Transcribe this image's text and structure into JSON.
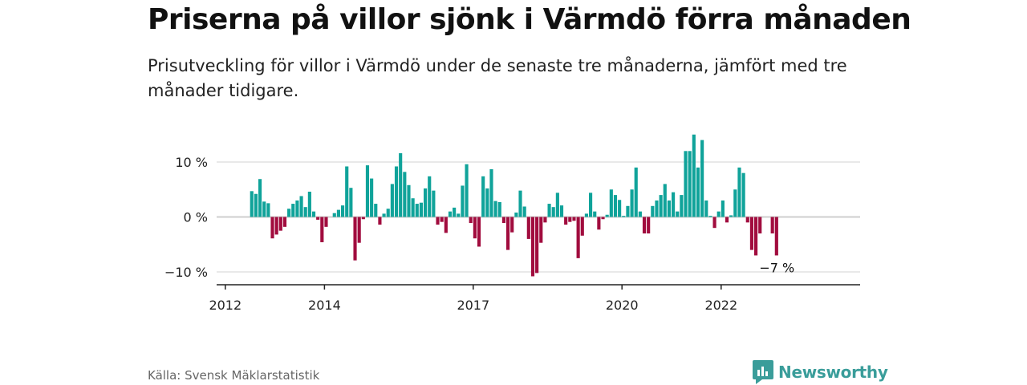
{
  "header": {
    "title": "Priserna på villor sjönk i Värmdö förra månaden",
    "subtitle": "Prisutveckling för villor i Värmdö under de senaste tre månaderna, jämfört med tre månader tidigare."
  },
  "footer": {
    "source": "Källa: Svensk Mäklarstatistik",
    "brand": "Newsworthy"
  },
  "colors": {
    "positive": "#10a39a",
    "negative": "#a10c3e",
    "brand": "#3a9d9a"
  },
  "chart_data": {
    "type": "bar",
    "x_start": "2012-01",
    "y_ticks": [
      {
        "value": 10,
        "label": "10 %"
      },
      {
        "value": 0,
        "label": "0 %"
      },
      {
        "value": -10,
        "label": "−10 %"
      }
    ],
    "x_ticks": [
      {
        "label": "2012",
        "year": 2012
      },
      {
        "label": "2014",
        "year": 2014
      },
      {
        "label": "2017",
        "year": 2017
      },
      {
        "label": "2020",
        "year": 2020
      },
      {
        "label": "2022",
        "year": 2022
      }
    ],
    "ylim": [
      -11,
      15
    ],
    "annotation": {
      "label": "−7 %"
    },
    "values": [
      null,
      null,
      null,
      null,
      null,
      null,
      4.7,
      4.2,
      6.9,
      2.8,
      2.5,
      -3.9,
      -3.2,
      -2.5,
      -1.8,
      1.5,
      2.4,
      3.0,
      3.8,
      1.8,
      4.6,
      1.0,
      -0.5,
      -4.6,
      -1.8,
      null,
      0.7,
      1.3,
      2.1,
      9.2,
      5.3,
      -7.9,
      -4.7,
      -0.4,
      9.4,
      7.0,
      2.4,
      -1.4,
      0.6,
      1.5,
      6.0,
      9.2,
      11.6,
      8.2,
      5.8,
      3.4,
      2.4,
      2.6,
      5.2,
      7.4,
      4.8,
      -1.4,
      -0.9,
      -2.9,
      1.0,
      1.7,
      0.6,
      5.7,
      9.6,
      -1.1,
      -3.9,
      -5.4,
      7.4,
      5.2,
      8.7,
      2.9,
      2.7,
      -1.1,
      -6.0,
      -2.8,
      0.8,
      4.8,
      1.9,
      -4.0,
      -10.8,
      -10.2,
      -4.7,
      -1.0,
      2.4,
      1.8,
      4.4,
      2.1,
      -1.4,
      -0.9,
      -0.7,
      -7.5,
      -3.4,
      0.6,
      4.4,
      1.0,
      -2.3,
      -0.4,
      0.4,
      5.0,
      4.0,
      3.1,
      0.2,
      2.0,
      5.0,
      9.0,
      1.0,
      -3.0,
      -3.0,
      2.0,
      3.0,
      4.0,
      6.0,
      3.0,
      4.5,
      1.0,
      4.0,
      12.0,
      12.0,
      15.0,
      9.0,
      14.0,
      3.0,
      0.2,
      -2.0,
      1.0,
      3.0,
      -1.0,
      0.3,
      5.0,
      9.0,
      8.0,
      -1.0,
      -6.0,
      -7.0,
      -3.0,
      null,
      null,
      -3.0,
      -7.0
    ]
  }
}
